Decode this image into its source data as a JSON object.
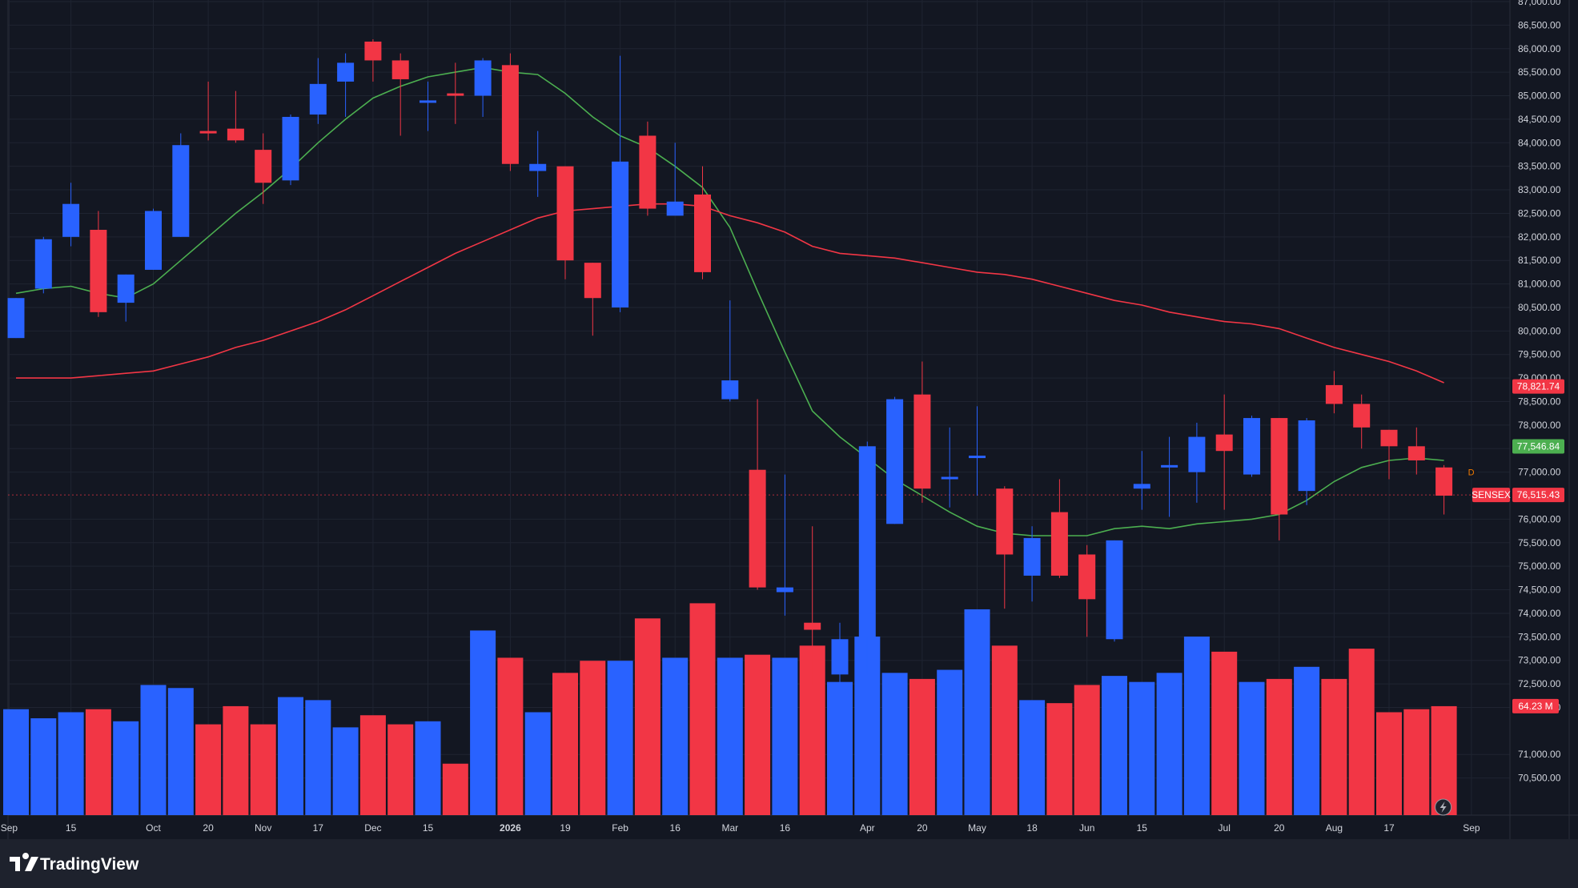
{
  "brand": {
    "name": "TradingView",
    "icon": "tradingview-logo-icon"
  },
  "colors": {
    "background": "#131722",
    "bottom_bar": "#1e222d",
    "grid": "#1f2431",
    "up": "#2962ff",
    "down": "#f23645",
    "ma_fast": "#4caf50",
    "ma_slow": "#f23645",
    "text": "#d1d4dc",
    "price_line": "#f23645"
  },
  "symbol": "SENSEX",
  "price_tags": {
    "ma_slow": {
      "label": "78,821.74",
      "value": 78821.74
    },
    "ma_fast": {
      "label": "77,546.84",
      "value": 77546.84
    },
    "last": {
      "symbol": "SENSEX",
      "label": "76,515.43",
      "value": 76515.43
    },
    "volume": {
      "label": "64.23 M",
      "value": 64.23
    }
  },
  "marker": {
    "text": "D"
  },
  "lightning_icon": "lightning-icon",
  "chart_data": {
    "type": "candlestick",
    "timeframe": "weekly",
    "y_axis": {
      "ylim": [
        70000,
        87000
      ],
      "ticks": [
        70500,
        71000,
        72000,
        72500,
        73000,
        73500,
        74000,
        74500,
        75000,
        75500,
        76000,
        77000,
        77500,
        78000,
        78500,
        79000,
        79500,
        80000,
        80500,
        81000,
        81500,
        82000,
        82500,
        83000,
        83500,
        84000,
        84500,
        85000,
        85500,
        86000,
        86500,
        87000
      ],
      "tick_labels": [
        "70,500.00",
        "71,000.00",
        "72,000.00",
        "72,500.00",
        "73,000.00",
        "73,500.00",
        "74,000.00",
        "74,500.00",
        "75,000.00",
        "75,500.00",
        "76,000.00",
        "77,000.00",
        "77,500.00",
        "78,000.00",
        "78,500.00",
        "79,000.00",
        "79,500.00",
        "80,000.00",
        "80,500.00",
        "81,000.00",
        "81,500.00",
        "82,000.00",
        "82,500.00",
        "83,000.00",
        "83,500.00",
        "84,000.00",
        "84,500.00",
        "85,000.00",
        "85,500.00",
        "86,000.00",
        "86,500.00",
        "87,000.00"
      ]
    },
    "x_axis": {
      "labels": [
        {
          "text": "Sep",
          "index": -0.25,
          "bold": false
        },
        {
          "text": "15",
          "index": 2,
          "bold": false
        },
        {
          "text": "Oct",
          "index": 5,
          "bold": false
        },
        {
          "text": "20",
          "index": 7,
          "bold": false
        },
        {
          "text": "Nov",
          "index": 9,
          "bold": false
        },
        {
          "text": "17",
          "index": 11,
          "bold": false
        },
        {
          "text": "Dec",
          "index": 13,
          "bold": false
        },
        {
          "text": "15",
          "index": 15,
          "bold": false
        },
        {
          "text": "2026",
          "index": 18,
          "bold": true
        },
        {
          "text": "19",
          "index": 20,
          "bold": false
        },
        {
          "text": "Feb",
          "index": 22,
          "bold": false
        },
        {
          "text": "16",
          "index": 24,
          "bold": false
        },
        {
          "text": "Mar",
          "index": 26,
          "bold": false
        },
        {
          "text": "16",
          "index": 28,
          "bold": false
        },
        {
          "text": "Apr",
          "index": 31,
          "bold": false
        },
        {
          "text": "20",
          "index": 33,
          "bold": false
        },
        {
          "text": "May",
          "index": 35,
          "bold": false
        },
        {
          "text": "18",
          "index": 37,
          "bold": false
        },
        {
          "text": "Jun",
          "index": 39,
          "bold": false
        },
        {
          "text": "15",
          "index": 41,
          "bold": false
        },
        {
          "text": "Jul",
          "index": 44,
          "bold": false
        },
        {
          "text": "20",
          "index": 46,
          "bold": false
        },
        {
          "text": "Aug",
          "index": 48,
          "bold": false
        },
        {
          "text": "17",
          "index": 50,
          "bold": false
        },
        {
          "text": "Sep",
          "index": 53,
          "bold": false
        }
      ]
    },
    "candles": [
      {
        "o": 79850,
        "h": 80700,
        "l": 79850,
        "c": 80700
      },
      {
        "o": 80900,
        "h": 82000,
        "l": 80800,
        "c": 81950
      },
      {
        "o": 82000,
        "h": 83150,
        "l": 81800,
        "c": 82700
      },
      {
        "o": 82150,
        "h": 82550,
        "l": 80300,
        "c": 80400
      },
      {
        "o": 80600,
        "h": 81200,
        "l": 80200,
        "c": 81200
      },
      {
        "o": 81300,
        "h": 82600,
        "l": 81300,
        "c": 82550
      },
      {
        "o": 82000,
        "h": 84200,
        "l": 82000,
        "c": 83950
      },
      {
        "o": 84250,
        "h": 85300,
        "l": 84050,
        "c": 84200
      },
      {
        "o": 84300,
        "h": 85100,
        "l": 84000,
        "c": 84050
      },
      {
        "o": 83850,
        "h": 84200,
        "l": 82700,
        "c": 83150
      },
      {
        "o": 83200,
        "h": 84600,
        "l": 83100,
        "c": 84550
      },
      {
        "o": 84600,
        "h": 85800,
        "l": 84400,
        "c": 85250
      },
      {
        "o": 85300,
        "h": 85900,
        "l": 84550,
        "c": 85700
      },
      {
        "o": 86150,
        "h": 86200,
        "l": 85300,
        "c": 85750
      },
      {
        "o": 85750,
        "h": 85900,
        "l": 84150,
        "c": 85350
      },
      {
        "o": 84900,
        "h": 85300,
        "l": 84250,
        "c": 84900
      },
      {
        "o": 85050,
        "h": 85700,
        "l": 84400,
        "c": 85000
      },
      {
        "o": 85000,
        "h": 85800,
        "l": 84550,
        "c": 85750
      },
      {
        "o": 85650,
        "h": 85900,
        "l": 83400,
        "c": 83550
      },
      {
        "o": 83400,
        "h": 84250,
        "l": 82850,
        "c": 83550
      },
      {
        "o": 83500,
        "h": 83500,
        "l": 81100,
        "c": 81500
      },
      {
        "o": 81450,
        "h": 81450,
        "l": 79900,
        "c": 80700
      },
      {
        "o": 80500,
        "h": 85850,
        "l": 80400,
        "c": 83600
      },
      {
        "o": 84150,
        "h": 84450,
        "l": 82450,
        "c": 82600
      },
      {
        "o": 82450,
        "h": 84000,
        "l": 82500,
        "c": 82750
      },
      {
        "o": 82900,
        "h": 83500,
        "l": 81100,
        "c": 81250
      },
      {
        "o": 78550,
        "h": 80650,
        "l": 78500,
        "c": 78950
      },
      {
        "o": 77050,
        "h": 78550,
        "l": 74500,
        "c": 74550
      },
      {
        "o": 74450,
        "h": 76950,
        "l": 73950,
        "c": 74550
      },
      {
        "o": 73800,
        "h": 75850,
        "l": 72500,
        "c": 73650
      },
      {
        "o": 72700,
        "h": 73800,
        "l": 72000,
        "c": 73450
      },
      {
        "o": 73500,
        "h": 77650,
        "l": 72700,
        "c": 77550
      },
      {
        "o": 75900,
        "h": 78600,
        "l": 75900,
        "c": 78550
      },
      {
        "o": 78650,
        "h": 79350,
        "l": 76350,
        "c": 76650
      },
      {
        "o": 76850,
        "h": 77950,
        "l": 76250,
        "c": 76900
      },
      {
        "o": 77300,
        "h": 78400,
        "l": 76500,
        "c": 77350
      },
      {
        "o": 76650,
        "h": 76700,
        "l": 74100,
        "c": 75250
      },
      {
        "o": 74800,
        "h": 75850,
        "l": 74250,
        "c": 75600
      },
      {
        "o": 76150,
        "h": 76850,
        "l": 74750,
        "c": 74800
      },
      {
        "o": 75250,
        "h": 75450,
        "l": 73500,
        "c": 74300
      },
      {
        "o": 73450,
        "h": 75550,
        "l": 73400,
        "c": 75550
      },
      {
        "o": 76650,
        "h": 77450,
        "l": 76200,
        "c": 76750
      },
      {
        "o": 77150,
        "h": 77750,
        "l": 76050,
        "c": 77150
      },
      {
        "o": 77000,
        "h": 78050,
        "l": 76350,
        "c": 77750
      },
      {
        "o": 77800,
        "h": 78650,
        "l": 76200,
        "c": 77450
      },
      {
        "o": 76950,
        "h": 78200,
        "l": 76900,
        "c": 78150
      },
      {
        "o": 78150,
        "h": 78150,
        "l": 75550,
        "c": 76100
      },
      {
        "o": 76600,
        "h": 78150,
        "l": 76300,
        "c": 78100
      },
      {
        "o": 78850,
        "h": 79150,
        "l": 78250,
        "c": 78450
      },
      {
        "o": 78450,
        "h": 78650,
        "l": 77500,
        "c": 77950
      },
      {
        "o": 77900,
        "h": 77900,
        "l": 76850,
        "c": 77550
      },
      {
        "o": 77550,
        "h": 77950,
        "l": 76950,
        "c": 77250
      },
      {
        "o": 77100,
        "h": 77150,
        "l": 76100,
        "c": 76500
      }
    ],
    "volume": {
      "max": 100,
      "values": [
        35,
        32,
        34,
        35,
        31,
        43,
        42,
        30,
        36,
        30,
        39,
        38,
        29,
        33,
        30,
        31,
        17,
        61,
        52,
        34,
        47,
        51,
        51,
        65,
        52,
        70,
        52,
        53,
        52,
        56,
        44,
        59,
        47,
        45,
        48,
        68,
        56,
        38,
        37,
        43,
        46,
        44,
        47,
        59,
        54,
        44,
        45,
        49,
        45,
        55,
        34,
        35,
        36
      ]
    },
    "series": [
      {
        "name": "",
        "color": "#4caf50",
        "values": [
          80800,
          80900,
          80950,
          80800,
          80700,
          81000,
          81500,
          82000,
          82500,
          82950,
          83450,
          84000,
          84500,
          84950,
          85200,
          85400,
          85500,
          85600,
          85500,
          85450,
          85050,
          84550,
          84150,
          83900,
          83500,
          83050,
          82200,
          80850,
          79550,
          78300,
          77750,
          77300,
          76850,
          76500,
          76150,
          75850,
          75700,
          75650,
          75650,
          75650,
          75800,
          75850,
          75800,
          75900,
          75950,
          76000,
          76100,
          76400,
          76800,
          77100,
          77250,
          77300,
          77250
        ]
      },
      {
        "name": "",
        "color": "#f23645",
        "values": [
          79000,
          79000,
          79000,
          79050,
          79100,
          79150,
          79300,
          79450,
          79650,
          79800,
          80000,
          80200,
          80450,
          80750,
          81050,
          81350,
          81650,
          81900,
          82150,
          82400,
          82550,
          82600,
          82650,
          82700,
          82700,
          82650,
          82450,
          82300,
          82100,
          81800,
          81650,
          81600,
          81550,
          81450,
          81350,
          81250,
          81200,
          81100,
          80950,
          80800,
          80650,
          80550,
          80400,
          80300,
          80200,
          80150,
          80050,
          79850,
          79650,
          79500,
          79350,
          79150,
          78900
        ]
      }
    ]
  }
}
